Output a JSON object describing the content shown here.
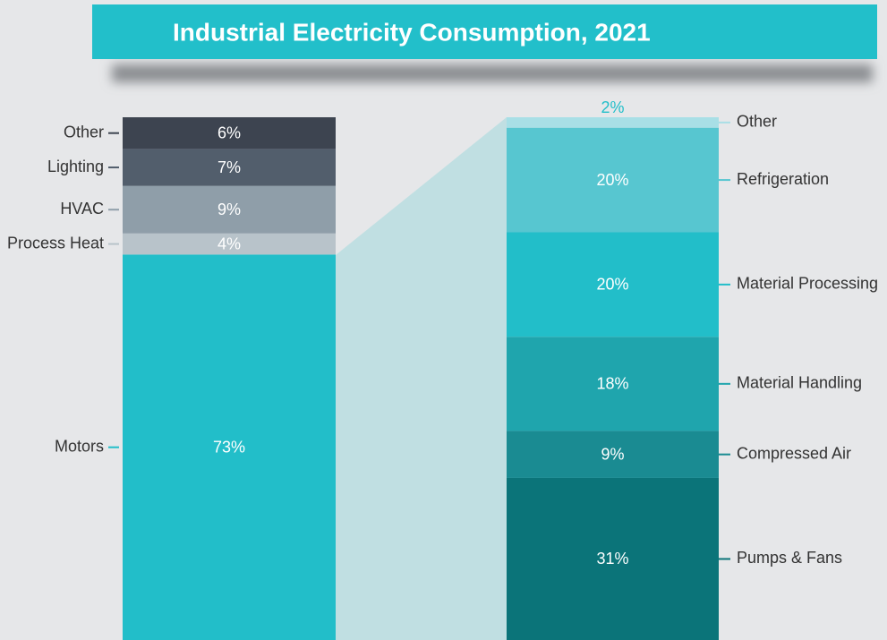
{
  "chart_data": [
    {
      "type": "stacked_bar",
      "title": "Industrial Electricity Consumption, 2021",
      "categories": [
        "Motors",
        "Process Heat",
        "HVAC",
        "Lighting",
        "Other"
      ],
      "values": [
        73,
        4,
        9,
        7,
        6
      ],
      "value_labels": [
        "73%",
        "4%",
        "9%",
        "7%",
        "6%"
      ],
      "colors": [
        "#22bec9",
        "#b8c3ca",
        "#8f9ea9",
        "#525e6c",
        "#3d4450"
      ]
    },
    {
      "type": "stacked_bar",
      "categories": [
        "Pumps & Fans",
        "Compressed Air",
        "Material Handling",
        "Material Processing",
        "Refrigeration",
        "Other"
      ],
      "values": [
        31,
        9,
        18,
        20,
        20,
        2
      ],
      "value_labels": [
        "31%",
        "9%",
        "18%",
        "20%",
        "20%",
        "2%"
      ],
      "colors": [
        "#0b7479",
        "#1a8b92",
        "#1fa5ad",
        "#22bec9",
        "#57c6d0",
        "#a8dfe6"
      ]
    }
  ]
}
